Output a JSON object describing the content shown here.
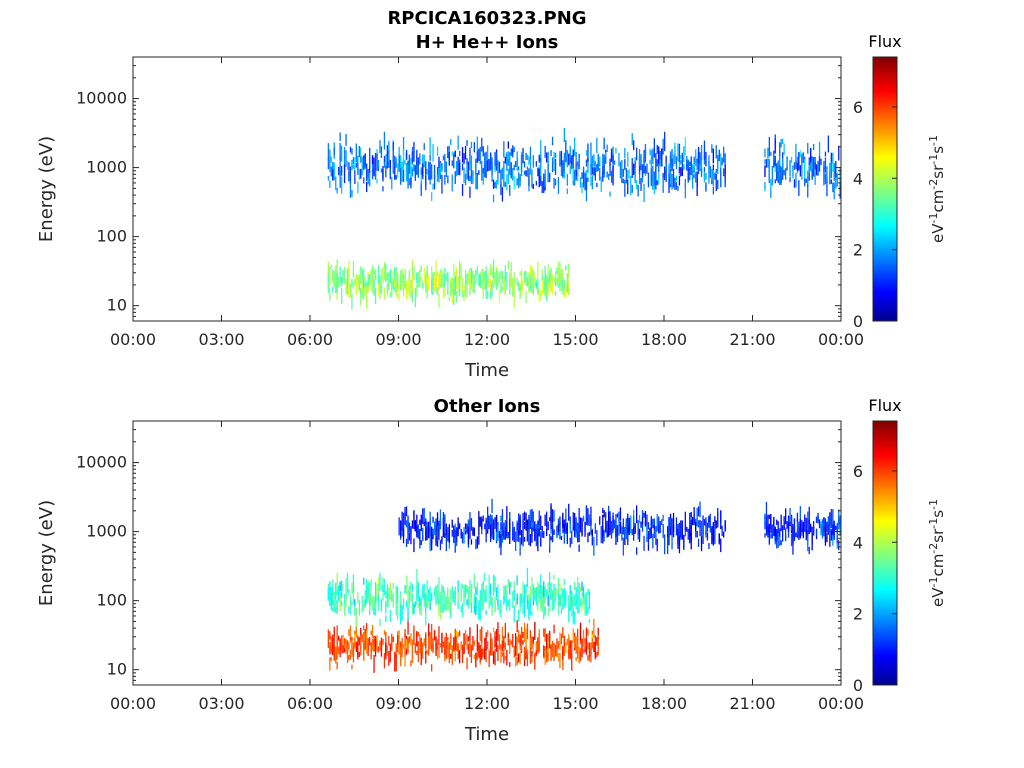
{
  "figure_title": "RPCICA160323.PNG",
  "chart_data": [
    {
      "type": "heatmap",
      "title": "H+ He++ Ions",
      "xlabel": "Time",
      "ylabel": "Energy (eV)",
      "xticks": [
        "00:00",
        "03:00",
        "06:00",
        "09:00",
        "12:00",
        "15:00",
        "18:00",
        "21:00",
        "00:00"
      ],
      "xlim_hours": [
        0,
        24
      ],
      "yscale": "log",
      "ylim": [
        6,
        40000
      ],
      "yticks": [
        10,
        100,
        1000,
        10000
      ],
      "ytick_labels": [
        "10",
        "100",
        "1000",
        "10000"
      ],
      "colorbar": {
        "title": "Flux",
        "label": "eV-1cm-2sr-1s-1",
        "range": [
          0,
          7.4
        ],
        "ticks": [
          0,
          2,
          4,
          6
        ],
        "colormap": "jet"
      },
      "data_start_hour": 6.6,
      "data_gap_hours": [
        20.1,
        21.4
      ],
      "bands": [
        {
          "name": "low-energy",
          "e_range": [
            10,
            40
          ],
          "center_e": 22,
          "time_range": [
            6.6,
            14.8
          ],
          "typical_flux": 3.8
        },
        {
          "name": "high-energy",
          "e_range": [
            300,
            3000
          ],
          "center_e": 1000,
          "time_range": [
            6.6,
            24.0
          ],
          "typical_flux": 1.8
        }
      ]
    },
    {
      "type": "heatmap",
      "title": "Other Ions",
      "xlabel": "Time",
      "ylabel": "Energy (eV)",
      "xticks": [
        "00:00",
        "03:00",
        "06:00",
        "09:00",
        "12:00",
        "15:00",
        "18:00",
        "21:00",
        "00:00"
      ],
      "xlim_hours": [
        0,
        24
      ],
      "yscale": "log",
      "ylim": [
        6,
        40000
      ],
      "yticks": [
        10,
        100,
        1000,
        10000
      ],
      "ytick_labels": [
        "10",
        "100",
        "1000",
        "10000"
      ],
      "colorbar": {
        "title": "Flux",
        "label": "eV-1cm-2sr-1s-1",
        "range": [
          0,
          7.4
        ],
        "ticks": [
          0,
          2,
          4,
          6
        ],
        "colormap": "jet"
      },
      "data_start_hour": 6.6,
      "data_gap_hours": [
        20.1,
        21.4
      ],
      "bands": [
        {
          "name": "low-energy",
          "e_range": [
            10,
            50
          ],
          "center_e": 22,
          "time_range": [
            6.6,
            15.8
          ],
          "typical_flux": 6.0
        },
        {
          "name": "mid-energy",
          "e_range": [
            50,
            300
          ],
          "center_e": 110,
          "time_range": [
            6.6,
            15.5
          ],
          "typical_flux": 3.2
        },
        {
          "name": "high-energy",
          "e_range": [
            500,
            2500
          ],
          "center_e": 1100,
          "time_range": [
            9.0,
            24.0
          ],
          "typical_flux": 1.2
        }
      ]
    }
  ]
}
